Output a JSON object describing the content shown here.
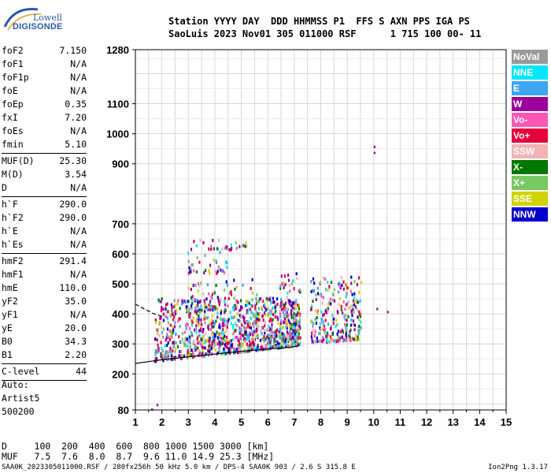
{
  "logo": {
    "line1": "Lowell",
    "line2": "DIGISONDE"
  },
  "header": {
    "row1": "Station YYYY DAY  DDD HHMMSS P1  FFS S AXN PPS IGA PS",
    "row2": "SaoLuis 2023 Nov01 305 011000 RSF      1 715 100 00- 11"
  },
  "params": [
    [
      {
        "k": "foF2",
        "v": "7.150"
      },
      {
        "k": "foF1",
        "v": "N/A"
      },
      {
        "k": "foF1p",
        "v": "N/A"
      },
      {
        "k": "foE",
        "v": "N/A"
      },
      {
        "k": "foEp",
        "v": "0.35"
      },
      {
        "k": "fxI",
        "v": "7.20"
      },
      {
        "k": "foEs",
        "v": "N/A"
      },
      {
        "k": "fmin",
        "v": "5.10"
      }
    ],
    [
      {
        "k": "MUF(D)",
        "v": "25.30"
      },
      {
        "k": "M(D)",
        "v": "3.54"
      },
      {
        "k": "D",
        "v": "N/A"
      }
    ],
    [
      {
        "k": "h`F",
        "v": "290.0"
      },
      {
        "k": "h`F2",
        "v": "290.0"
      },
      {
        "k": "h`E",
        "v": "N/A"
      },
      {
        "k": "h`Es",
        "v": "N/A"
      }
    ],
    [
      {
        "k": "hmF2",
        "v": "291.4"
      },
      {
        "k": "hmF1",
        "v": "N/A"
      },
      {
        "k": "hmE",
        "v": "110.0"
      },
      {
        "k": "yF2",
        "v": "35.0"
      },
      {
        "k": "yF1",
        "v": "N/A"
      },
      {
        "k": "yE",
        "v": "20.0"
      },
      {
        "k": "B0",
        "v": "34.3"
      },
      {
        "k": "B1",
        "v": "2.20"
      }
    ],
    [
      {
        "k": "C-level",
        "v": "44"
      }
    ]
  ],
  "auto": {
    "line1": "Auto:",
    "line2": "Artist5",
    "line3": "500200"
  },
  "legend": [
    {
      "label": "NoVal",
      "color": "#9a9a9a"
    },
    {
      "label": "NNE",
      "color": "#00e6ff"
    },
    {
      "label": "E",
      "color": "#3ca6f0"
    },
    {
      "label": "W",
      "color": "#9a009a"
    },
    {
      "label": "Vo-",
      "color": "#ff55b4"
    },
    {
      "label": "Vo+",
      "color": "#e6003c"
    },
    {
      "label": "SSW",
      "color": "#f0b4b4"
    },
    {
      "label": "X-",
      "color": "#007800"
    },
    {
      "label": "X+",
      "color": "#78c864"
    },
    {
      "label": "SSE",
      "color": "#d2d200"
    },
    {
      "label": "NNW",
      "color": "#0000c8"
    }
  ],
  "bottom": {
    "d_row": "D     100  200  400  600  800 1000 1500 3000 [km]",
    "muf_row": "MUF   7.5  7.6  8.0  8.7  9.6 11.0 14.9 25.3 [MHz]"
  },
  "footer": {
    "left": "SAA0K_2023305011000.RSF / 280fx256h 50 kHz 5.0 km / DPS-4 SAA0K 903 / 2.6 S 315.8 E",
    "right": "Ion2Png 1.3.17"
  },
  "chart_data": {
    "type": "scatter",
    "title": "",
    "xlabel": "",
    "ylabel": "",
    "xlim": [
      1,
      15
    ],
    "ylim": [
      80,
      1280
    ],
    "x_ticks": [
      "1",
      "2",
      "3",
      "4",
      "5",
      "6",
      "7",
      "8",
      "9",
      "10",
      "11",
      "12",
      "13",
      "14",
      "15"
    ],
    "y_ticks": [
      {
        "v": 80,
        "label": "80"
      },
      {
        "v": 200,
        "label": "200"
      },
      {
        "v": 300,
        "label": "300"
      },
      {
        "v": 400,
        "label": "400"
      },
      {
        "v": 500,
        "label": "500"
      },
      {
        "v": 600,
        "label": "600"
      },
      {
        "v": 700,
        "label": "700"
      },
      {
        "v": 900,
        "label": "900"
      },
      {
        "v": 1000,
        "label": "1000"
      },
      {
        "v": 1100,
        "label": "1100"
      },
      {
        "v": 1280,
        "label": "1280"
      }
    ],
    "grid_y": [
      80,
      100,
      200,
      300,
      400,
      500,
      600,
      700,
      800,
      900,
      1000,
      1100,
      1200,
      1280
    ],
    "grid": true,
    "profile_solid": [
      [
        1,
        235
      ],
      [
        1.5,
        241
      ],
      [
        2,
        247
      ],
      [
        3,
        257
      ],
      [
        4,
        266
      ],
      [
        5,
        275
      ],
      [
        6,
        283
      ],
      [
        6.8,
        288
      ],
      [
        7.15,
        293
      ],
      [
        7.15,
        300
      ]
    ],
    "profile_dashed": [
      [
        1,
        432
      ],
      [
        1.3,
        418
      ],
      [
        1.7,
        400
      ],
      [
        2.1,
        389
      ]
    ],
    "echo_regions": [
      {
        "x": [
          1.7,
          7.2
        ],
        "y": [
          230,
          460
        ],
        "density": 1.0
      },
      {
        "x": [
          2.9,
          5.7
        ],
        "y": [
          300,
          520
        ],
        "density": 0.35
      },
      {
        "x": [
          2.8,
          4.5
        ],
        "y": [
          540,
          610
        ],
        "density": 0.4
      },
      {
        "x": [
          2.9,
          5.2
        ],
        "y": [
          618,
          650
        ],
        "density": 0.55
      },
      {
        "x": [
          6.4,
          7.2
        ],
        "y": [
          320,
          540
        ],
        "density": 0.9
      },
      {
        "x": [
          7.6,
          9.5
        ],
        "y": [
          310,
          530
        ],
        "density": 0.85
      }
    ],
    "echo_colors": [
      "#9a009a",
      "#0000c8",
      "#e6003c",
      "#ff55b4",
      "#3ca6f0",
      "#00e6ff",
      "#78c864",
      "#007800",
      "#d2d200",
      "#f0b4b4",
      "#9a9a9a"
    ],
    "isolated_points": [
      [
        1.6,
        85
      ],
      [
        1.8,
        100
      ],
      [
        10.0,
        940
      ],
      [
        10.0,
        960
      ],
      [
        10.5,
        410
      ],
      [
        10.1,
        420
      ]
    ]
  }
}
